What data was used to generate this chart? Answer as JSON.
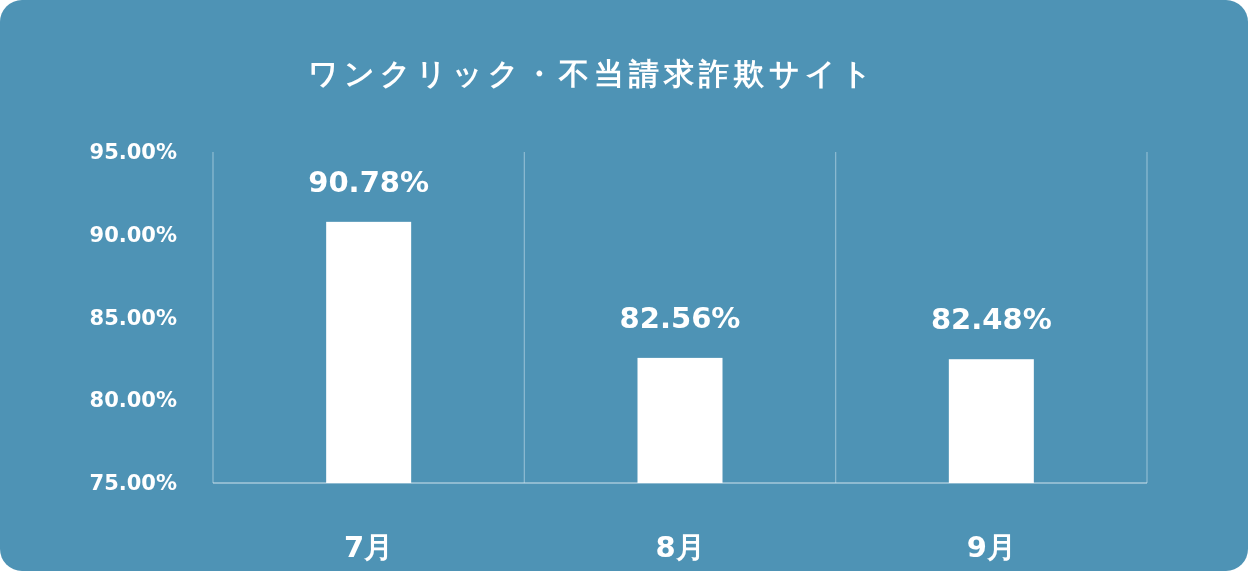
{
  "chart_data": {
    "type": "bar",
    "title": "ワンクリック・不当請求詐欺サイト",
    "categories": [
      "7月",
      "8月",
      "9月"
    ],
    "values": [
      90.78,
      82.56,
      82.48
    ],
    "value_labels": [
      "90.78%",
      "82.56%",
      "82.48%"
    ],
    "color": "#ffffff",
    "ylim": [
      75,
      95
    ],
    "yticks": [
      {
        "value": 75,
        "label": "75.00%"
      },
      {
        "value": 80,
        "label": "80.00%"
      },
      {
        "value": 85,
        "label": "85.00%"
      },
      {
        "value": 90,
        "label": "90.00%"
      },
      {
        "value": 95,
        "label": "95.00%"
      }
    ],
    "grid": "x"
  }
}
